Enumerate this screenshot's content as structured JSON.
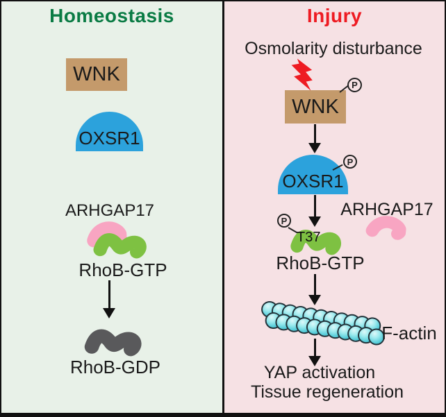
{
  "figure": {
    "left": {
      "title": "Homeostasis",
      "wnk_label": "WNK",
      "oxsr1_label": "OXSR1",
      "arhgap17_label": "ARHGAP17",
      "rhob_gtp_label": "RhoB-GTP",
      "rhob_gdp_label": "RhoB-GDP"
    },
    "right": {
      "title": "Injury",
      "osmolarity_label": "Osmolarity disturbance",
      "wnk_label": "WNK",
      "oxsr1_label": "OXSR1",
      "arhgap17_label": "ARHGAP17",
      "t37_label": "T37",
      "rhob_gtp_label": "RhoB-GTP",
      "f_actin_label": "F-actin",
      "yap_label": "YAP activation",
      "tissue_label": "Tissue regeneration",
      "phospho_label": "P",
      "f_actin_beads": {
        "rows": 2,
        "per_row": 11
      }
    },
    "colors": {
      "homeostasis_title": "#0a7b44",
      "injury_title": "#ee1b22",
      "left_bg": "#e8f1e8",
      "right_bg": "#f6e1e4",
      "wnk_box": "#c49a6b",
      "oxsr1_dome": "#2ca2dc",
      "arhgap17_pink": "#f8a5c2",
      "rhob_gtp_green": "#7ec142",
      "rhob_gdp_gray": "#59595b",
      "f_actin_cyan": "#55ccd9",
      "lightning_red": "#ee1b22",
      "text": "#1a1a1a"
    }
  }
}
